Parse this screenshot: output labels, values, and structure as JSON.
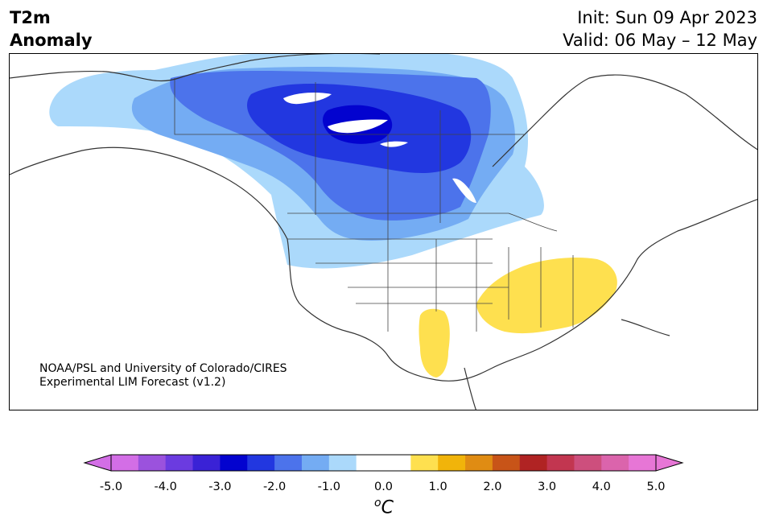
{
  "header": {
    "variable": "T2m",
    "field": "Anomaly",
    "init": "Init: Sun 09 Apr 2023",
    "valid": "Valid: 06 May – 12 May"
  },
  "credit": {
    "line1": "NOAA/PSL and University of Colorado/CIRES",
    "line2": "Experimental LIM Forecast (v1.2)"
  },
  "colorbar": {
    "ticks": [
      "-5.0",
      "-4.0",
      "-3.0",
      "-2.0",
      "-1.0",
      "0.0",
      "1.0",
      "2.0",
      "3.0",
      "4.0",
      "5.0"
    ],
    "unit": "C",
    "unit_prefix": "o",
    "colors": [
      "#d36ee6",
      "#9b52dd",
      "#6b3be0",
      "#3a22d6",
      "#0303cf",
      "#2237e0",
      "#4c73eb",
      "#74acf3",
      "#abd9fb",
      "#ffffff",
      "#ffffff",
      "#fee04f",
      "#f1b40a",
      "#e08c13",
      "#c85418",
      "#b02323",
      "#c23650",
      "#cd4f7d",
      "#db64ac",
      "#e776d6"
    ]
  }
}
